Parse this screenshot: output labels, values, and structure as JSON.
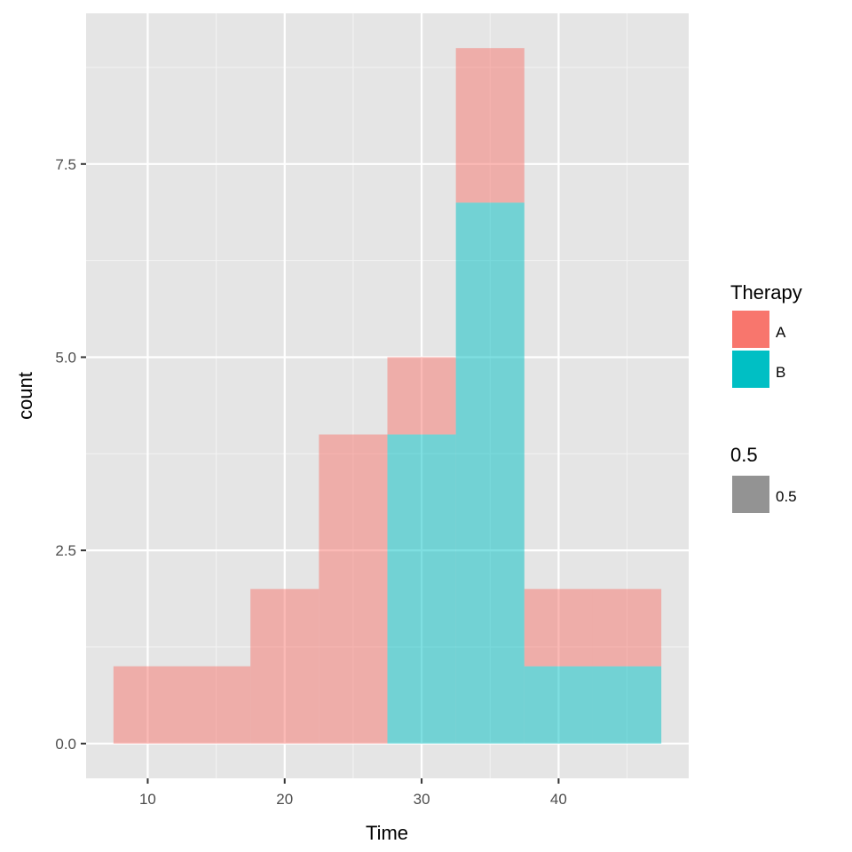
{
  "chart_data": {
    "type": "bar",
    "subtype": "stacked-histogram",
    "x_bin_width": 5,
    "x_bins": [
      [
        7.5,
        12.5
      ],
      [
        12.5,
        17.5
      ],
      [
        17.5,
        22.5
      ],
      [
        22.5,
        27.5
      ],
      [
        27.5,
        32.5
      ],
      [
        32.5,
        37.5
      ],
      [
        37.5,
        42.5
      ],
      [
        42.5,
        47.5
      ]
    ],
    "series": [
      {
        "name": "A",
        "color": "#F8766D",
        "counts": [
          1,
          1,
          2,
          4,
          1,
          2,
          1,
          1
        ]
      },
      {
        "name": "B",
        "color": "#00BFC4",
        "counts": [
          0,
          0,
          0,
          0,
          4,
          7,
          1,
          1
        ]
      }
    ],
    "bar_alpha": 0.5,
    "xlabel": "Time",
    "ylabel": "count",
    "xlim": [
      5.5,
      49.5
    ],
    "ylim": [
      -0.45,
      9.45
    ],
    "x_ticks": [
      10,
      20,
      30,
      40
    ],
    "x_tick_labels": [
      "10",
      "20",
      "30",
      "40"
    ],
    "y_ticks": [
      0,
      2.5,
      5,
      7.5
    ],
    "y_tick_labels": [
      "0.0",
      "2.5",
      "5.0",
      "7.5"
    ],
    "grid": true,
    "panel_background": "#E5E5E5",
    "legend_placement": "right",
    "legends": [
      {
        "title": "Therapy",
        "entries": [
          {
            "label": "A",
            "color": "#F8766D"
          },
          {
            "label": "B",
            "color": "#00BFC4"
          }
        ]
      },
      {
        "title": "0.5",
        "entries": [
          {
            "label": "0.5",
            "color": "#939393"
          }
        ]
      }
    ]
  }
}
